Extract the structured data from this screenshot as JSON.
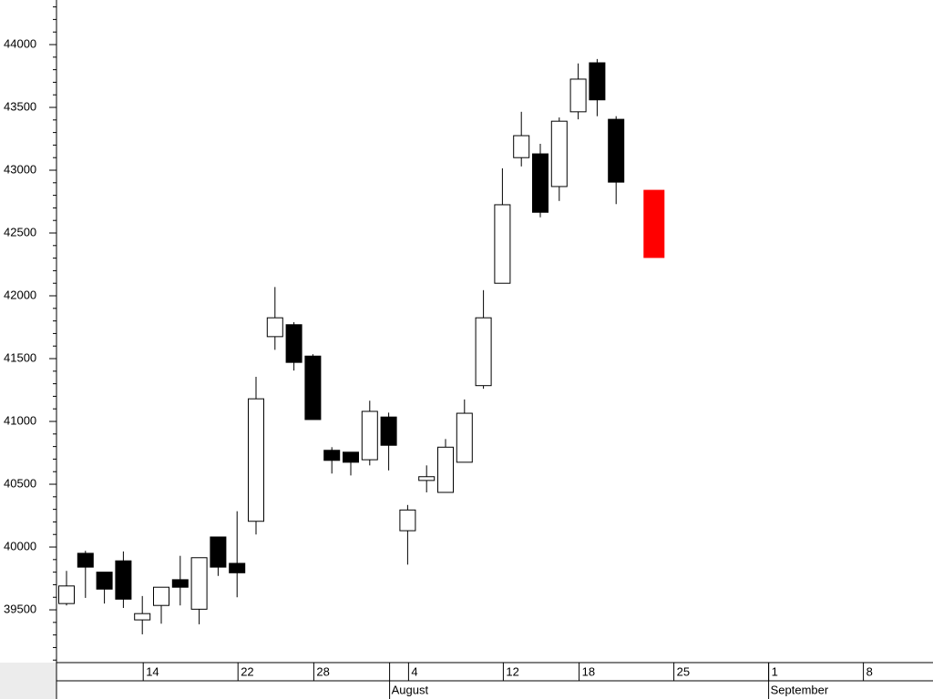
{
  "chart_data": {
    "type": "candlestick",
    "categories": [
      null,
      null,
      null,
      null,
      "14",
      null,
      null,
      null,
      null,
      "22",
      null,
      null,
      null,
      "28",
      null,
      null,
      null,
      null,
      "4",
      null,
      null,
      null,
      null,
      "12",
      null,
      null,
      null,
      "18",
      null,
      null,
      null,
      null,
      "25",
      null,
      null,
      null,
      null,
      "1",
      null,
      null,
      null,
      null,
      "8",
      null,
      null,
      null
    ],
    "months": [
      null,
      null,
      null,
      null,
      null,
      null,
      null,
      null,
      null,
      null,
      null,
      null,
      null,
      null,
      null,
      null,
      null,
      "August",
      null,
      null,
      null,
      null,
      null,
      null,
      null,
      null,
      null,
      null,
      null,
      null,
      null,
      null,
      null,
      null,
      null,
      null,
      null,
      "September",
      null,
      null,
      null,
      null,
      null,
      null,
      null,
      null
    ],
    "open": [
      39550,
      39950,
      39800,
      39890,
      39420,
      39535,
      39740,
      39505,
      40080,
      39870,
      40205,
      41675,
      41770,
      41520,
      40770,
      40755,
      40695,
      41035,
      40130,
      40530,
      40435,
      40675,
      41285,
      42100,
      43100,
      43130,
      42870,
      43465,
      43855,
      43405,
      null,
      42840,
      null,
      null,
      null,
      null,
      null,
      null,
      null,
      null,
      null,
      null,
      null,
      null,
      null,
      null
    ],
    "high": [
      39810,
      39970,
      39800,
      39965,
      39610,
      39680,
      39930,
      39915,
      40080,
      40285,
      41355,
      42070,
      41790,
      41535,
      40795,
      40755,
      41165,
      41070,
      40335,
      40650,
      40860,
      41175,
      42045,
      43015,
      43465,
      43210,
      43420,
      43850,
      43885,
      43430,
      null,
      42840,
      null,
      null,
      null,
      null,
      null,
      null,
      null,
      null,
      null,
      null,
      null,
      null,
      null,
      null
    ],
    "low": [
      39535,
      39595,
      39550,
      39515,
      39305,
      39390,
      39535,
      39385,
      39770,
      39600,
      40100,
      41570,
      41405,
      41015,
      40585,
      40570,
      40650,
      40610,
      39860,
      40435,
      40435,
      40675,
      41260,
      42100,
      43030,
      42625,
      42755,
      43405,
      43430,
      42730,
      null,
      42305,
      null,
      null,
      null,
      null,
      null,
      null,
      null,
      null,
      null,
      null,
      null,
      null,
      null,
      null
    ],
    "close": [
      39690,
      39840,
      39665,
      39585,
      39470,
      39680,
      39680,
      39915,
      39840,
      39795,
      41180,
      41825,
      41470,
      41015,
      40690,
      40675,
      41080,
      40810,
      40295,
      40560,
      40795,
      41065,
      41825,
      42725,
      43275,
      42665,
      43390,
      43725,
      43560,
      42905,
      null,
      42305,
      null,
      null,
      null,
      null,
      null,
      null,
      null,
      null,
      null,
      null,
      null,
      null,
      null,
      null
    ],
    "up_color": "#ffffff",
    "down_color": "#000000",
    "last_color": "#ff0000",
    "ylim": [
      39080,
      44355
    ],
    "yticks": [
      39500,
      40000,
      40500,
      41000,
      41500,
      42000,
      42500,
      43000,
      43500,
      44000
    ],
    "yminorticks": [
      39100,
      39200,
      39300,
      39400,
      39600,
      39700,
      39800,
      39900,
      40100,
      40200,
      40300,
      40400,
      40600,
      40700,
      40800,
      40900,
      41100,
      41200,
      41300,
      41400,
      41600,
      41700,
      41800,
      41900,
      42100,
      42200,
      42300,
      42400,
      42600,
      42700,
      42800,
      42900,
      43100,
      43200,
      43300,
      43400,
      43600,
      43700,
      43800,
      43900,
      44100,
      44200,
      44300
    ]
  }
}
